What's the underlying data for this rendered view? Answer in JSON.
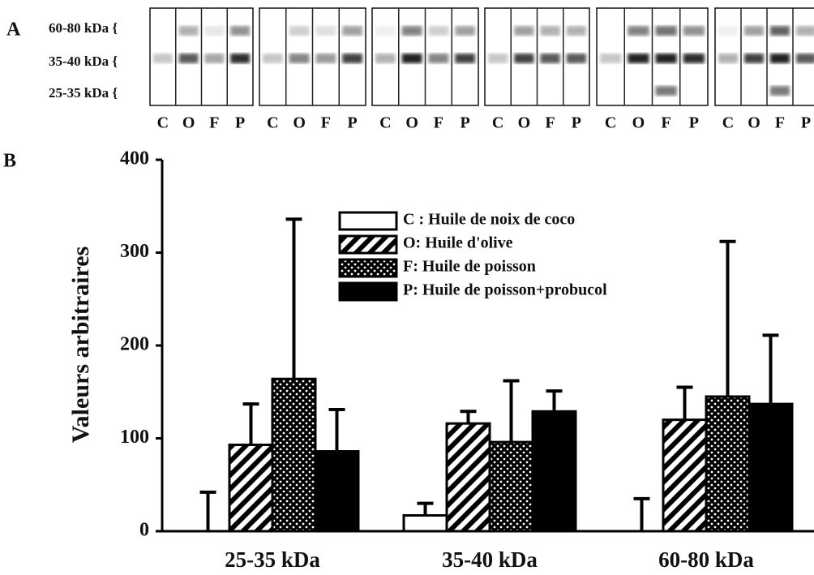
{
  "panel_a": {
    "label": "A",
    "band_labels": [
      "60-80 kDa {",
      "35-40 kDa {",
      "25-35 kDa {"
    ],
    "lanes": [
      "C",
      "O",
      "F",
      "P"
    ]
  },
  "chart_data": {
    "type": "bar",
    "panel_label": "B",
    "y_label": "Valeurs arbitraires",
    "categories": [
      "25-35 kDa",
      "35-40 kDa",
      "60-80 kDa"
    ],
    "series": [
      {
        "name": "C : Huile de noix de coco",
        "fill": "white",
        "values": [
          0,
          17,
          0
        ],
        "errors": [
          42,
          13,
          35
        ]
      },
      {
        "name": "O: Huile d'olive",
        "fill": "hatch",
        "values": [
          93,
          116,
          120
        ],
        "errors": [
          44,
          13,
          35
        ]
      },
      {
        "name": "F: Huile de poisson",
        "fill": "dots",
        "values": [
          164,
          96,
          145
        ],
        "errors": [
          172,
          66,
          167
        ]
      },
      {
        "name": "P: Huile de poisson+probucol",
        "fill": "black",
        "values": [
          86,
          129,
          137
        ],
        "errors": [
          45,
          22,
          74
        ]
      }
    ],
    "ylim": [
      0,
      400
    ],
    "yticks": [
      0,
      100,
      200,
      300,
      400
    ]
  }
}
